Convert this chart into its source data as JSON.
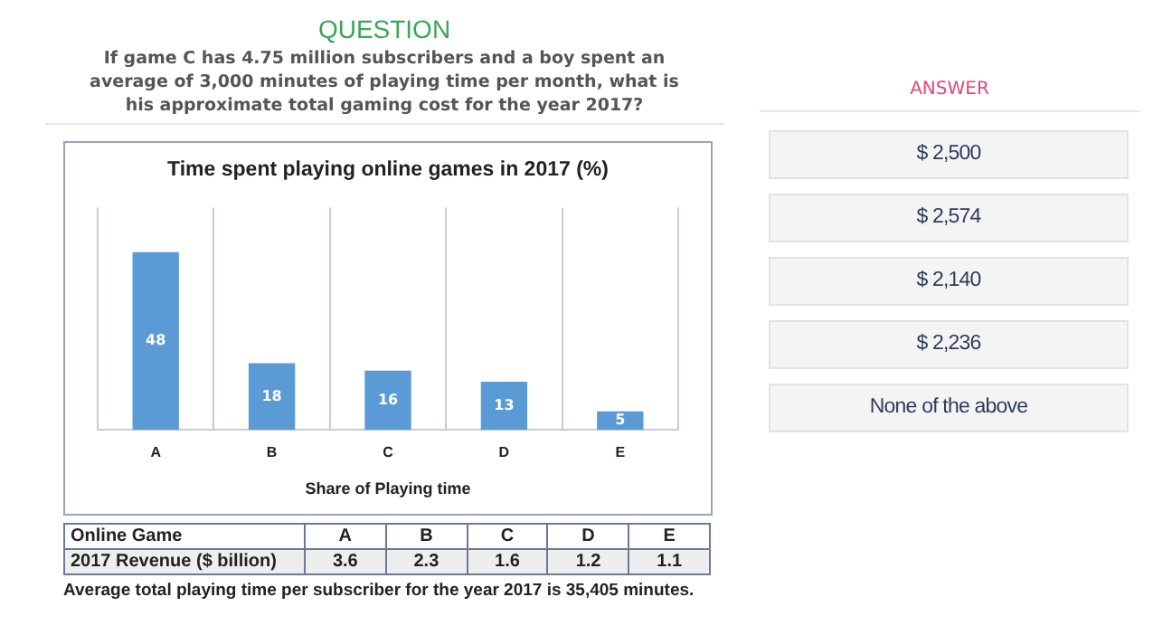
{
  "chart_data": [
    {
      "type": "other",
      "title": "QUESTION",
      "subtitle": "If game C has 4.75 million subscribers and a boy spent an average of 3,000 minutes of playing time per month, what is his approximate total gaming cost for the year 2017?"
    },
    {
      "type": "bar",
      "title": "Time spent playing online games in 2017 (%)",
      "xlabel": "Share of Playing time",
      "categories": [
        "A",
        "B",
        "C",
        "D",
        "E"
      ],
      "values": [
        48,
        18,
        16,
        13,
        5
      ],
      "color": "#5b9bd5",
      "data_labels": true,
      "grid": "x",
      "legend": false
    },
    {
      "type": "other",
      "xlabel": "Online Game",
      "ylabel": "2017 Revenue ($ billion)",
      "categories": [
        "A",
        "B",
        "C",
        "D",
        "E"
      ],
      "values": [
        3.6,
        2.3,
        1.6,
        1.2,
        1.1
      ],
      "data_labels": true,
      "annotations": [
        "Average total playing time per subscriber for the year 2017 is 35,405 minutes."
      ]
    },
    {
      "type": "other",
      "title": "ANSWER",
      "annotations": [
        "$ 2,500",
        "$ 2,574",
        "$ 2,140",
        "$ 2,236",
        "None of the above"
      ]
    }
  ]
}
